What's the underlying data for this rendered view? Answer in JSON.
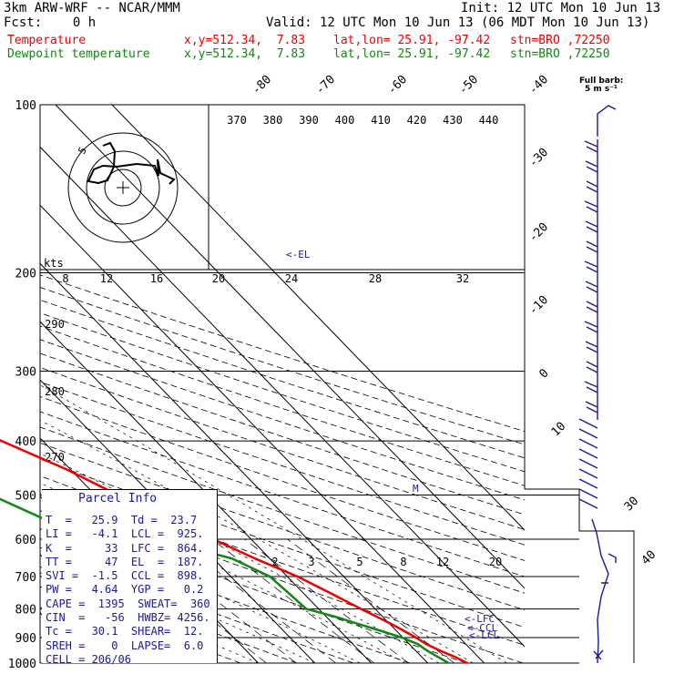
{
  "header": {
    "title": "3km ARW-WRF -- NCAR/MMM",
    "init": "Init: 12 UTC Mon 10 Jun 13",
    "fcst": "Fcst:    0 h",
    "valid": "Valid: 12 UTC Mon 10 Jun 13 (06 MDT Mon 10 Jun 13)",
    "temperature_line": {
      "label": "Temperature",
      "xy": "x,y=512.34,  7.83",
      "latlon": "lat,lon= 25.91, -97.42",
      "stn": "stn=BRO ,72250"
    },
    "dewpoint_line": {
      "label": "Dewpoint temperature",
      "xy": "x,y=512.34,  7.83",
      "latlon": "lat,lon= 25.91, -97.42",
      "stn": "stn=BRO ,72250"
    }
  },
  "colors": {
    "temperature": "#ee0000",
    "dewpoint": "#118811",
    "label_blue": "#1a1a99",
    "grid": "#000000"
  },
  "barb_key": {
    "line1": "Full barb:",
    "line2": "5 m s⁻¹"
  },
  "kts_label": "kts",
  "parcel_info": {
    "title": "Parcel Info",
    "rows": [
      "T  =   25.9  Td =  23.7",
      "LI =   -4.1  LCL =  925.",
      "K  =     33  LFC =  864.",
      "TT =     47  EL  =  187.",
      "SVI =  -1.5  CCL =  898.",
      "PW =   4.64  YGP =   0.2",
      "CAPE =  1395  SWEAT=  360",
      "CIN  =   -56  HWBZ= 4256.",
      "Tc =   30.1  SHEAR=  12.",
      "SREH =    0  LAPSE=  6.0",
      "CELL = 206/06"
    ]
  },
  "level_labels": {
    "el": "<-EL",
    "lfc": "<-LFC",
    "ccl": "<-CCL",
    "lcl": "<-LCL",
    "m": "M"
  },
  "chart_data": {
    "type": "line",
    "title": "",
    "ylabel": "",
    "xlabel": "",
    "pressure_ticks": [
      "100",
      "200",
      "300",
      "400",
      "500",
      "600",
      "700",
      "800",
      "900",
      "1000"
    ],
    "temperature_ticks": [
      "-80",
      "-70",
      "-60",
      "-50",
      "-40",
      "-30",
      "-20",
      "-10",
      "0",
      "10",
      "20",
      "30",
      "40"
    ],
    "theta_ticks_top": [
      "370",
      "380",
      "390",
      "400",
      "410",
      "420",
      "430",
      "440"
    ],
    "theta_ticks_left": [
      "290",
      "280",
      "270"
    ],
    "wind_ticks_kts": [
      "8",
      "12",
      "16",
      "20",
      "24",
      "28",
      "32"
    ],
    "mixing_ratio_ticks": [
      "2",
      "3",
      "5",
      "8",
      "12",
      "20"
    ],
    "series": [
      {
        "name": "Temperature",
        "pressure_hPa": [
          1000,
          975,
          950,
          925,
          900,
          875,
          850,
          825,
          800,
          750,
          700,
          650,
          600,
          550,
          500,
          450,
          400,
          350,
          300,
          250,
          225,
          200,
          175,
          150,
          125,
          110,
          100
        ],
        "values_C": [
          27.0,
          25.9,
          24.3,
          23.0,
          22.3,
          21.3,
          20.2,
          18.9,
          17.5,
          14.8,
          11.8,
          7.4,
          3.3,
          -1.4,
          -6.0,
          -10.7,
          -17.3,
          -24.9,
          -32.6,
          -42.3,
          -49.3,
          -56.8,
          -64.1,
          -70.1,
          -73.1,
          -73.1,
          -73.4
        ]
      },
      {
        "name": "Dewpoint temperature",
        "pressure_hPa": [
          1000,
          975,
          950,
          925,
          900,
          875,
          850,
          825,
          800,
          750,
          700,
          650,
          600,
          550,
          500,
          450,
          400,
          350,
          300,
          250,
          225,
          200,
          175,
          150,
          140,
          125,
          110,
          100
        ],
        "values_C": [
          23.7,
          22.9,
          22.0,
          21.5,
          19.8,
          17.2,
          14.3,
          11.5,
          7.8,
          7.4,
          6.9,
          3.3,
          -6.5,
          -23.4,
          -28.4,
          -28.8,
          -26.9,
          -32.8,
          -46.9,
          -51.7,
          -53.0,
          -54.0,
          -60.0,
          -70.0,
          -75.0,
          -68.0,
          -60.0,
          -55.0
        ]
      }
    ],
    "hodograph_kts_ring_labels": [
      "5"
    ]
  }
}
